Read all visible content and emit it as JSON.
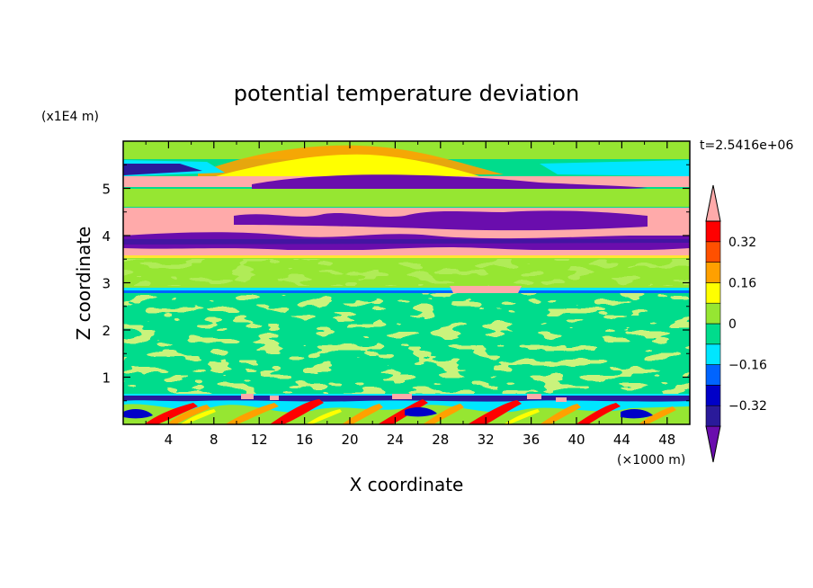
{
  "chart_data": {
    "type": "heatmap",
    "title": "potential temperature deviation",
    "xlabel": "X coordinate",
    "ylabel": "Z coordinate",
    "x_unit": "(×1000 m)",
    "y_unit": "(x1E4 m)",
    "time_label": "t=2.5416e+06",
    "xlim": [
      0,
      50
    ],
    "ylim": [
      0,
      6
    ],
    "x_ticks": [
      4,
      8,
      12,
      16,
      20,
      24,
      28,
      32,
      36,
      40,
      44,
      48
    ],
    "x_tick_labels": [
      "4",
      "8",
      "12",
      "16",
      "20",
      "24",
      "28",
      "32",
      "36",
      "40",
      "44",
      "48"
    ],
    "y_ticks": [
      1,
      2,
      3,
      4,
      5
    ],
    "y_tick_labels": [
      "1",
      "2",
      "3",
      "4",
      "5"
    ],
    "colorbar": {
      "levels": [
        -0.4,
        -0.32,
        -0.24,
        -0.16,
        -0.08,
        0,
        0.08,
        0.16,
        0.24,
        0.32,
        0.4
      ],
      "tick_values": [
        0.32,
        0.16,
        0,
        -0.16,
        -0.32
      ],
      "tick_labels": [
        "0.32",
        "0.16",
        "0",
        "−0.16",
        "−0.32"
      ],
      "colors": [
        "#6a0dad",
        "#2a1a9a",
        "#0000c8",
        "#0064ff",
        "#00e6ff",
        "#00dc8c",
        "#96e632",
        "#ffff00",
        "#ffa000",
        "#ff5000",
        "#ff0000",
        "#ffaaaa"
      ],
      "extend": "both"
    },
    "bands": [
      {
        "z": [
          0.0,
          0.6
        ],
        "level": "mixed (-0.4 to +0.4)"
      },
      {
        "z": [
          0.6,
          2.8
        ],
        "level": "0 to 0.08"
      },
      {
        "z": [
          2.8,
          2.9
        ],
        "level": "-0.16 to -0.08"
      },
      {
        "z": [
          2.9,
          3.5
        ],
        "level": "0 to 0.08"
      },
      {
        "z": [
          3.5,
          4.6
        ],
        "level": "mixed (-0.4 and >0.4)"
      },
      {
        "z": [
          4.6,
          5.0
        ],
        "level": "0 to 0.08"
      },
      {
        "z": [
          5.0,
          5.2
        ],
        "level": "> 0.4"
      },
      {
        "z": [
          5.2,
          5.6
        ],
        "level": "< -0.4"
      },
      {
        "z": [
          5.6,
          6.0
        ],
        "level": "0 to 0.08"
      }
    ]
  }
}
